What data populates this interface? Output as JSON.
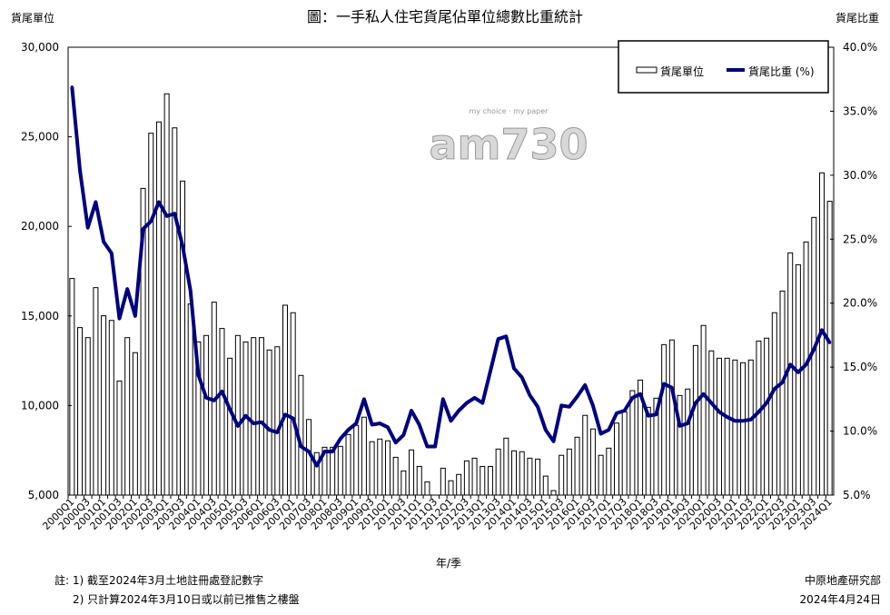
{
  "chart_data": {
    "type": "bar+line",
    "title": "圖：一手私人住宅貨尾佔單位總數比重統計",
    "xlabel": "年/季",
    "ylabel_left": "貨尾單位",
    "ylabel_right": "貨尾比重",
    "ylim_left": [
      5000,
      30000
    ],
    "ylim_right": [
      5.0,
      40.0
    ],
    "left_ticks": [
      "5,000",
      "10,000",
      "15,000",
      "20,000",
      "25,000",
      "30,000"
    ],
    "left_tick_values": [
      5000,
      10000,
      15000,
      20000,
      25000,
      30000
    ],
    "right_ticks": [
      "5.0%",
      "10.0%",
      "15.0%",
      "20.0%",
      "25.0%",
      "30.0%",
      "35.0%",
      "40.0%"
    ],
    "right_tick_values": [
      5,
      10,
      15,
      20,
      25,
      30,
      35,
      40
    ],
    "legend": {
      "position": "top-right",
      "entries": [
        "貨尾單位",
        "貨尾比重 (%)"
      ]
    },
    "start_year": 2000,
    "quarters": 97,
    "series": [
      {
        "name": "貨尾單位",
        "type": "bar",
        "axis": "left",
        "color": "#ffffff",
        "values": [
          17090,
          14350,
          13790,
          16580,
          15010,
          14750,
          11370,
          13790,
          12950,
          22120,
          25200,
          25830,
          27400,
          25500,
          22530,
          15670,
          13550,
          13910,
          15770,
          14300,
          12640,
          13910,
          13550,
          13790,
          13790,
          13100,
          13280,
          15600,
          15180,
          11680,
          9220,
          7370,
          7670,
          7670,
          7720,
          8380,
          8890,
          9350,
          7980,
          8130,
          8030,
          7110,
          6350,
          7520,
          6600,
          5740,
          5000,
          6500,
          5800,
          6150,
          6910,
          7060,
          6600,
          6600,
          7570,
          8180,
          7470,
          7420,
          7060,
          7010,
          6060,
          5250,
          7220,
          7570,
          8230,
          9450,
          8690,
          7220,
          7620,
          9020,
          9650,
          10830,
          11420,
          9900,
          10410,
          13400,
          13660,
          10560,
          10920,
          13350,
          14470,
          13050,
          12640,
          12640,
          12540,
          12390,
          12540,
          13600,
          13760,
          15180,
          16390,
          18520,
          17860,
          19130,
          20500,
          22990,
          21400
        ]
      },
      {
        "name": "貨尾比重 (%)",
        "type": "line",
        "axis": "right",
        "color": "#000080",
        "values": [
          36.9,
          30.4,
          25.9,
          27.9,
          24.8,
          23.9,
          18.8,
          21.1,
          19.0,
          25.8,
          26.4,
          27.9,
          26.8,
          27.0,
          24.5,
          21.0,
          14.4,
          12.6,
          12.4,
          13.1,
          11.7,
          10.4,
          11.2,
          10.6,
          10.7,
          10.1,
          9.9,
          11.3,
          11.0,
          8.8,
          8.4,
          7.3,
          8.4,
          8.4,
          9.4,
          10.1,
          10.6,
          12.5,
          10.5,
          10.6,
          10.3,
          9.1,
          9.7,
          11.6,
          10.5,
          8.8,
          8.8,
          12.5,
          10.8,
          11.6,
          12.2,
          12.6,
          12.2,
          14.7,
          17.2,
          17.4,
          14.9,
          14.2,
          12.8,
          11.9,
          10.1,
          9.2,
          12.0,
          11.9,
          12.7,
          13.6,
          12.0,
          9.8,
          10.1,
          11.4,
          11.6,
          12.6,
          12.9,
          11.2,
          11.3,
          13.7,
          13.4,
          10.4,
          10.6,
          12.2,
          12.9,
          12.2,
          11.5,
          11.1,
          10.8,
          10.8,
          10.9,
          11.5,
          12.2,
          13.3,
          13.8,
          15.2,
          14.6,
          15.2,
          16.4,
          17.9,
          16.9
        ]
      }
    ]
  },
  "notes": {
    "line1": "註: 1) 截至2024年3月土地註冊處登記數字",
    "line2": "2) 只計算2024年3月10日或以前已推售之樓盤"
  },
  "source": {
    "org": "中原地產研究部",
    "date": "2024年4月24日"
  },
  "watermark": {
    "logo": "am730",
    "tagline": "my choice · my paper"
  }
}
